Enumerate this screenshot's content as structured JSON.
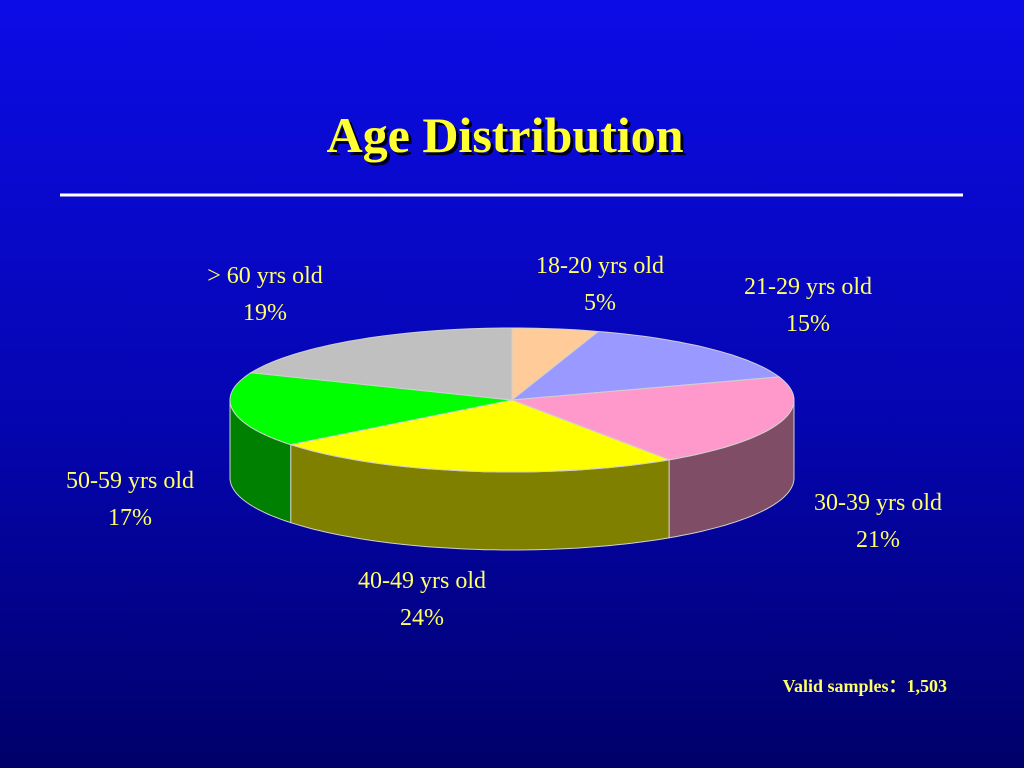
{
  "chart_data": {
    "type": "pie",
    "title": "Age Distribution",
    "categories": [
      "18-20 yrs old",
      "21-29 yrs old",
      "30-39 yrs old",
      "40-49 yrs old",
      "50-59 yrs old",
      "> 60 yrs old"
    ],
    "values": [
      5,
      15,
      21,
      24,
      17,
      19
    ],
    "value_labels": [
      "5%",
      "15%",
      "21%",
      "24%",
      "17%",
      "19%"
    ],
    "colors": [
      "#ffcc99",
      "#9999ff",
      "#ff99cc",
      "#ffff00",
      "#00ff00",
      "#c0c0c0"
    ],
    "annotation": "Valid samples：1,503"
  }
}
